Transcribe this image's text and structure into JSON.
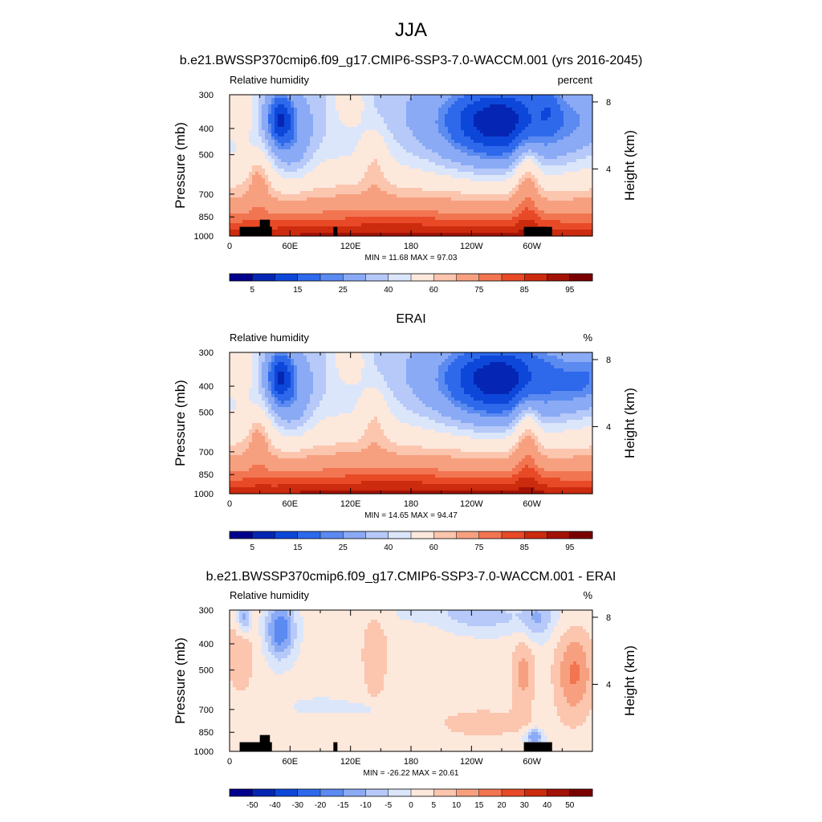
{
  "figure": {
    "season": "JJA"
  },
  "colors": {
    "rh_fill": [
      "#00008c",
      "#0526b4",
      "#0d47d9",
      "#2e69eb",
      "#5b8af0",
      "#8aaaf5",
      "#b6c9f8",
      "#dbe6fb",
      "#fde8dc",
      "#fbc5ae",
      "#f7a07f",
      "#f27551",
      "#e84a27",
      "#cc2b0e",
      "#a31206",
      "#7a0000"
    ],
    "diff_fill": [
      "#00008c",
      "#0526b4",
      "#0d47d9",
      "#2e69eb",
      "#5b8af0",
      "#8aaaf5",
      "#b6c9f8",
      "#dbe6fb",
      "#fde8dc",
      "#fbc5ae",
      "#f7a07f",
      "#f27551",
      "#e84a27",
      "#cc2b0e",
      "#a31206",
      "#7a0000"
    ],
    "topography": "#000000"
  },
  "chart_data": [
    {
      "type": "heatmap",
      "title": "b.e21.BWSSP370cmip6.f09_g17.CMIP6-SSP3-7.0-WACCM.001 (yrs 2016-2045)",
      "left_label": "Relative humidity",
      "right_label": "percent",
      "ylabel": "Pressure (mb)",
      "ylabel_right": "Height (km)",
      "x_ticks": [
        "0",
        "60E",
        "120E",
        "180",
        "120W",
        "60W"
      ],
      "y_ticks": [
        "300",
        "400",
        "500",
        "700",
        "850",
        "1000"
      ],
      "height_ticks": [
        "8",
        "4"
      ],
      "stats": "MIN =  11.68  MAX =  97.03",
      "colorbar_labels": [
        "5",
        "15",
        "25",
        "40",
        "60",
        "75",
        "85",
        "95"
      ],
      "xlim": [
        0,
        360
      ],
      "ylim": [
        1000,
        300
      ],
      "height_km_values": [
        8,
        4
      ]
    },
    {
      "type": "heatmap",
      "title": "ERAI",
      "left_label": "Relative humidity",
      "right_label": "%",
      "ylabel": "Pressure (mb)",
      "ylabel_right": "Height (km)",
      "x_ticks": [
        "0",
        "60E",
        "120E",
        "180",
        "120W",
        "60W"
      ],
      "y_ticks": [
        "300",
        "400",
        "500",
        "700",
        "850",
        "1000"
      ],
      "height_ticks": [
        "8",
        "4"
      ],
      "stats": "MIN =  14.65  MAX =  94.47",
      "colorbar_labels": [
        "5",
        "15",
        "25",
        "40",
        "60",
        "75",
        "85",
        "95"
      ],
      "xlim": [
        0,
        360
      ],
      "ylim": [
        1000,
        300
      ],
      "height_km_values": [
        8,
        4
      ]
    },
    {
      "type": "heatmap",
      "title": "b.e21.BWSSP370cmip6.f09_g17.CMIP6-SSP3-7.0-WACCM.001 - ERAI",
      "left_label": "Relative humidity",
      "right_label": "%",
      "ylabel": "Pressure (mb)",
      "ylabel_right": "Height (km)",
      "x_ticks": [
        "0",
        "60E",
        "120E",
        "180",
        "120W",
        "60W"
      ],
      "y_ticks": [
        "300",
        "400",
        "500",
        "700",
        "850",
        "1000"
      ],
      "height_ticks": [
        "8",
        "4"
      ],
      "stats": "MIN = -26.22  MAX =  20.61",
      "colorbar_labels": [
        "-50",
        "-40",
        "-30",
        "-20",
        "-15",
        "-10",
        "-5",
        "0",
        "5",
        "10",
        "15",
        "20",
        "30",
        "40",
        "50"
      ],
      "xlim": [
        0,
        360
      ],
      "ylim": [
        1000,
        300
      ],
      "height_km_values": [
        8,
        4
      ]
    }
  ]
}
